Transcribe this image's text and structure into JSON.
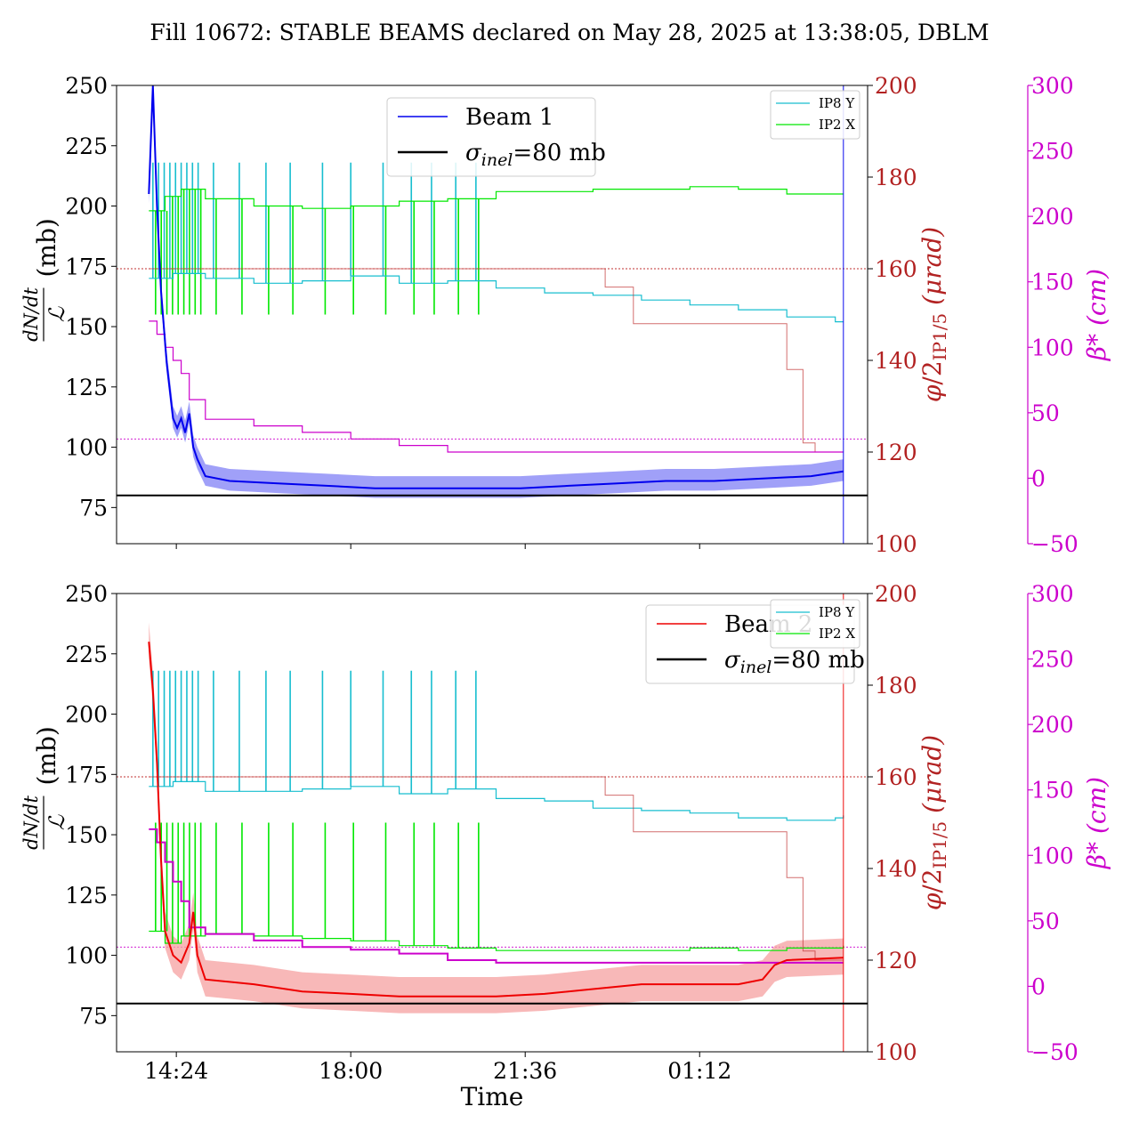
{
  "title": "Fill 10672: STABLE BEAMS declared on May 28, 2025 at 13:38:05, DBLM",
  "xlabel": "Time",
  "x_ticks": [
    "14:24",
    "18:00",
    "21:36",
    "01:12"
  ],
  "colors": {
    "beam1": "#0000ee",
    "beam1_band": "#8080f5",
    "beam2": "#ee0000",
    "beam2_band": "#f5a0a0",
    "ip8y": "#17becf",
    "ip2x": "#00e800",
    "crossing": "#c03030",
    "beta": "#cc00cc",
    "reference": "#000000"
  },
  "chart_data": [
    {
      "type": "line",
      "panel": "top",
      "x_range": [
        "13:10",
        "04:40"
      ],
      "ylabel": "dN/dt / 𝓛 (mb)",
      "ylim": [
        60,
        250
      ],
      "yticks": [
        75,
        100,
        125,
        150,
        175,
        200,
        225,
        250
      ],
      "y2label": "φ/2IP1/5 (μrad)",
      "y2lim": [
        100,
        200
      ],
      "y2ticks": [
        100,
        120,
        140,
        160,
        180,
        200
      ],
      "y3label": "β* (cm)",
      "y3lim": [
        -50,
        300
      ],
      "y3ticks": [
        -50,
        0,
        50,
        100,
        150,
        200,
        250,
        300
      ],
      "legend_main": {
        "beam": "Beam 1",
        "ref_prefix": "σ",
        "ref_sub": "inel",
        "ref_suffix": "=80 mb"
      },
      "legend_small": [
        "IP8 Y",
        "IP2 X"
      ],
      "beam": {
        "name": "Beam 1",
        "points": [
          [
            "13:50",
            205
          ],
          [
            "13:55",
            250
          ],
          [
            "14:00",
            200
          ],
          [
            "14:05",
            165
          ],
          [
            "14:12",
            135
          ],
          [
            "14:20",
            112
          ],
          [
            "14:25",
            108
          ],
          [
            "14:30",
            112
          ],
          [
            "14:35",
            106
          ],
          [
            "14:40",
            114
          ],
          [
            "14:45",
            100
          ],
          [
            "14:50",
            95
          ],
          [
            "15:00",
            88
          ],
          [
            "15:30",
            86
          ],
          [
            "16:30",
            85
          ],
          [
            "17:30",
            84
          ],
          [
            "18:30",
            83
          ],
          [
            "19:30",
            83
          ],
          [
            "20:30",
            83
          ],
          [
            "21:30",
            83
          ],
          [
            "22:30",
            84
          ],
          [
            "23:30",
            85
          ],
          [
            "00:30",
            86
          ],
          [
            "01:30",
            86
          ],
          [
            "02:30",
            87
          ],
          [
            "03:30",
            88
          ],
          [
            "04:10",
            90
          ]
        ]
      },
      "reference": {
        "name": "σinel=80 mb",
        "value": 80
      },
      "crossing": [
        [
          "13:50",
          160
        ],
        [
          "23:05",
          160
        ],
        [
          "23:15",
          156
        ],
        [
          "23:40",
          156
        ],
        [
          "23:50",
          148
        ],
        [
          "02:50",
          148
        ],
        [
          "03:00",
          138
        ],
        [
          "03:20",
          122
        ],
        [
          "03:35",
          120
        ],
        [
          "04:10",
          120
        ]
      ],
      "crossing_ref": 160,
      "beta": [
        [
          "13:50",
          120
        ],
        [
          "14:00",
          110
        ],
        [
          "14:10",
          100
        ],
        [
          "14:20",
          90
        ],
        [
          "14:30",
          80
        ],
        [
          "14:40",
          60
        ],
        [
          "15:00",
          45
        ],
        [
          "16:00",
          40
        ],
        [
          "17:00",
          35
        ],
        [
          "18:00",
          30
        ],
        [
          "19:00",
          25
        ],
        [
          "20:00",
          20
        ],
        [
          "21:00",
          20
        ],
        [
          "22:00",
          20
        ],
        [
          "23:00",
          20
        ],
        [
          "04:10",
          20
        ]
      ],
      "beta_ref": 30,
      "ip8y": [
        [
          "13:50",
          170
        ],
        [
          "14:20",
          172
        ],
        [
          "15:00",
          170
        ],
        [
          "16:00",
          168
        ],
        [
          "17:00",
          169
        ],
        [
          "18:00",
          171
        ],
        [
          "19:00",
          168
        ],
        [
          "20:00",
          169
        ],
        [
          "21:00",
          166
        ],
        [
          "22:00",
          164
        ],
        [
          "23:00",
          163
        ],
        [
          "00:00",
          161
        ],
        [
          "01:00",
          159
        ],
        [
          "02:00",
          157
        ],
        [
          "03:00",
          154
        ],
        [
          "04:00",
          152
        ],
        [
          "04:10",
          152
        ]
      ],
      "ip8y_spike_top": 218,
      "ip2x": [
        [
          "13:50",
          198
        ],
        [
          "14:10",
          204
        ],
        [
          "14:30",
          207
        ],
        [
          "15:00",
          203
        ],
        [
          "16:00",
          200
        ],
        [
          "17:00",
          199
        ],
        [
          "18:00",
          200
        ],
        [
          "19:00",
          202
        ],
        [
          "20:00",
          203
        ],
        [
          "21:00",
          206
        ],
        [
          "22:00",
          206
        ],
        [
          "23:00",
          207
        ],
        [
          "00:00",
          207
        ],
        [
          "01:00",
          208
        ],
        [
          "02:00",
          207
        ],
        [
          "03:00",
          205
        ],
        [
          "04:10",
          205
        ]
      ],
      "ip2x_spike_bottom": 155,
      "spikes": [
        "13:55",
        "14:02",
        "14:09",
        "14:16",
        "14:23",
        "14:30",
        "14:37",
        "14:44",
        "14:51",
        "15:10",
        "15:42",
        "16:15",
        "16:45",
        "17:25",
        "18:00",
        "18:40",
        "19:15",
        "19:40",
        "20:10",
        "20:35"
      ],
      "end_line": "04:10"
    },
    {
      "type": "line",
      "panel": "bottom",
      "x_range": [
        "13:10",
        "04:40"
      ],
      "ylabel": "dN/dt / 𝓛 (mb)",
      "ylim": [
        60,
        250
      ],
      "yticks": [
        75,
        100,
        125,
        150,
        175,
        200,
        225,
        250
      ],
      "y2label": "φ/2IP1/5 (μrad)",
      "y2lim": [
        100,
        200
      ],
      "y2ticks": [
        100,
        120,
        140,
        160,
        180,
        200
      ],
      "y3label": "β* (cm)",
      "y3lim": [
        -50,
        300
      ],
      "y3ticks": [
        -50,
        0,
        50,
        100,
        150,
        200,
        250,
        300
      ],
      "legend_main": {
        "beam": "Beam 2",
        "ref_prefix": "σ",
        "ref_sub": "inel",
        "ref_suffix": "=80 mb"
      },
      "legend_small": [
        "IP8 Y",
        "IP2 X"
      ],
      "beam": {
        "name": "Beam 2",
        "points": [
          [
            "13:50",
            230
          ],
          [
            "13:55",
            210
          ],
          [
            "14:00",
            180
          ],
          [
            "14:05",
            140
          ],
          [
            "14:10",
            110
          ],
          [
            "14:20",
            100
          ],
          [
            "14:30",
            97
          ],
          [
            "14:40",
            105
          ],
          [
            "14:45",
            118
          ],
          [
            "14:50",
            100
          ],
          [
            "15:00",
            90
          ],
          [
            "16:00",
            88
          ],
          [
            "17:00",
            85
          ],
          [
            "18:00",
            84
          ],
          [
            "19:00",
            83
          ],
          [
            "20:00",
            83
          ],
          [
            "21:00",
            83
          ],
          [
            "22:00",
            84
          ],
          [
            "23:00",
            86
          ],
          [
            "00:00",
            88
          ],
          [
            "01:00",
            88
          ],
          [
            "02:00",
            88
          ],
          [
            "02:30",
            90
          ],
          [
            "02:45",
            96
          ],
          [
            "03:00",
            98
          ],
          [
            "04:10",
            99
          ]
        ]
      },
      "reference": {
        "name": "σinel=80 mb",
        "value": 80
      },
      "crossing": [
        [
          "13:50",
          160
        ],
        [
          "23:05",
          160
        ],
        [
          "23:15",
          156
        ],
        [
          "23:40",
          156
        ],
        [
          "23:50",
          148
        ],
        [
          "02:50",
          148
        ],
        [
          "03:00",
          138
        ],
        [
          "03:20",
          122
        ],
        [
          "03:35",
          120
        ],
        [
          "04:10",
          120
        ]
      ],
      "crossing_ref": 160,
      "beta": [
        [
          "13:50",
          120
        ],
        [
          "14:00",
          110
        ],
        [
          "14:10",
          95
        ],
        [
          "14:20",
          80
        ],
        [
          "14:30",
          65
        ],
        [
          "14:40",
          45
        ],
        [
          "15:00",
          40
        ],
        [
          "16:00",
          35
        ],
        [
          "17:00",
          30
        ],
        [
          "18:00",
          28
        ],
        [
          "19:00",
          25
        ],
        [
          "20:00",
          20
        ],
        [
          "21:00",
          18
        ],
        [
          "22:00",
          18
        ],
        [
          "23:00",
          18
        ],
        [
          "04:10",
          18
        ]
      ],
      "beta_ref": 30,
      "ip8y": [
        [
          "13:50",
          170
        ],
        [
          "14:20",
          172
        ],
        [
          "15:00",
          168
        ],
        [
          "16:00",
          168
        ],
        [
          "17:00",
          169
        ],
        [
          "18:00",
          170
        ],
        [
          "19:00",
          167
        ],
        [
          "20:00",
          169
        ],
        [
          "21:00",
          165
        ],
        [
          "22:00",
          164
        ],
        [
          "23:00",
          161
        ],
        [
          "00:00",
          160
        ],
        [
          "01:00",
          159
        ],
        [
          "02:00",
          157
        ],
        [
          "03:00",
          156
        ],
        [
          "04:00",
          157
        ],
        [
          "04:10",
          158
        ]
      ],
      "ip8y_spike_top": 218,
      "ip2x": [
        [
          "13:50",
          110
        ],
        [
          "14:10",
          105
        ],
        [
          "14:30",
          108
        ],
        [
          "15:00",
          109
        ],
        [
          "16:00",
          108
        ],
        [
          "17:00",
          107
        ],
        [
          "18:00",
          106
        ],
        [
          "19:00",
          104
        ],
        [
          "20:00",
          103
        ],
        [
          "21:00",
          102
        ],
        [
          "22:00",
          102
        ],
        [
          "23:00",
          102
        ],
        [
          "00:00",
          102
        ],
        [
          "01:00",
          103
        ],
        [
          "02:00",
          102
        ],
        [
          "03:00",
          103
        ],
        [
          "04:10",
          104
        ]
      ],
      "ip2x_spike_top": 155,
      "spikes": [
        "13:55",
        "14:02",
        "14:09",
        "14:16",
        "14:23",
        "14:30",
        "14:37",
        "14:44",
        "14:51",
        "15:10",
        "15:42",
        "16:15",
        "16:45",
        "17:25",
        "18:00",
        "18:40",
        "19:15",
        "19:40",
        "20:10",
        "20:35"
      ],
      "end_line": "04:10"
    }
  ]
}
